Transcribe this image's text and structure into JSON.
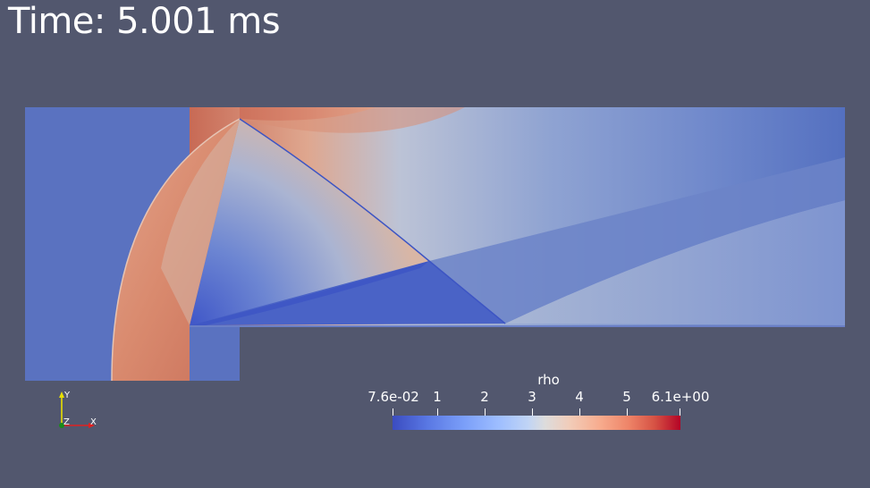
{
  "time_label": "Time: 5.001 ms",
  "colorbar": {
    "title": "rho",
    "ticks": [
      "7.6e-02",
      "1",
      "2",
      "3",
      "4",
      "5",
      "6.1e+00"
    ],
    "range": [
      0.076,
      6.1
    ],
    "colormap": "cool-to-warm",
    "color_low": "#3b4cc0",
    "color_high": "#b40426"
  },
  "axes": {
    "y": "Y",
    "z": "Z",
    "x": "X"
  },
  "colors": {
    "background": "#52576e",
    "ambient_field": "#5a72c0"
  }
}
